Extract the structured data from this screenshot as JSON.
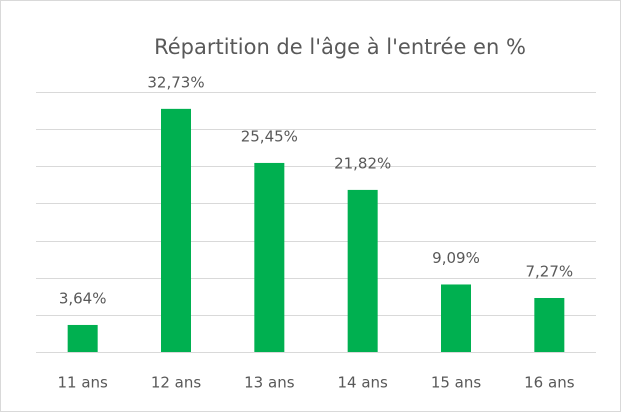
{
  "chart_data": {
    "type": "bar",
    "title": "Répartition de l'âge à l'entrée en %",
    "categories": [
      "11 ans",
      "12 ans",
      "13 ans",
      "14 ans",
      "15 ans",
      "16 ans"
    ],
    "values": [
      3.64,
      32.73,
      25.45,
      21.82,
      9.09,
      7.27
    ],
    "value_labels": [
      "3,64%",
      "32,73%",
      "25,45%",
      "21,82%",
      "9,09%",
      "7,27%"
    ],
    "color": "#00b050",
    "ylim": [
      0,
      35
    ],
    "yticks": [
      0,
      5,
      10,
      15,
      20,
      25,
      30,
      35
    ],
    "grid": true
  }
}
